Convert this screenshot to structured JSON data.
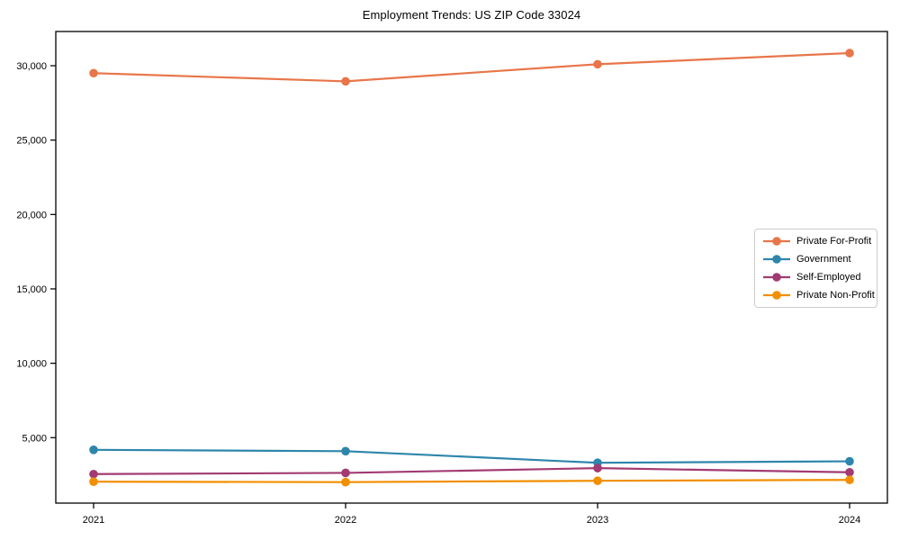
{
  "chart_data": {
    "type": "line",
    "title": "Employment Trends: US ZIP Code 33024",
    "xlabel": "",
    "ylabel": "",
    "x": [
      2021,
      2022,
      2023,
      2024
    ],
    "x_tick_labels": [
      "2021",
      "2022",
      "2023",
      "2024"
    ],
    "xlim": [
      2020.85,
      2024.15
    ],
    "ylim": [
      600,
      32300
    ],
    "yticks": [
      5000,
      10000,
      15000,
      20000,
      25000,
      30000
    ],
    "ytick_format": "thousands-comma",
    "grid": false,
    "legend_position": "center right",
    "marker": "circle",
    "series": [
      {
        "name": "Private For-Profit",
        "color": "#E8764A",
        "values": [
          29500,
          28950,
          30100,
          30850
        ]
      },
      {
        "name": "Government",
        "color": "#2E86AB",
        "values": [
          4180,
          4090,
          3310,
          3410
        ]
      },
      {
        "name": "Self-Employed",
        "color": "#A23B72",
        "values": [
          2550,
          2630,
          2950,
          2670
        ]
      },
      {
        "name": "Private Non-Profit",
        "color": "#F18F01",
        "values": [
          2040,
          2010,
          2100,
          2160
        ]
      }
    ],
    "colors": {
      "spine": "#000000",
      "tick_label": "#000000",
      "background": "#ffffff",
      "legend_border": "#cccccc"
    }
  }
}
